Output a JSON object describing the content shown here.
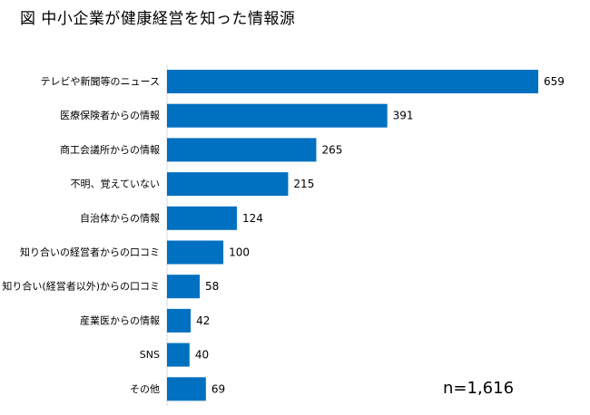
{
  "chart_data": {
    "type": "bar",
    "orientation": "horizontal",
    "title": "図 中小企業が健康経営を知った情報源",
    "categories": [
      "テレビや新聞等のニュース",
      "医療保険者からの情報",
      "商工会議所からの情報",
      "不明、覚えていない",
      "自治体からの情報",
      "知り合いの経営者からの口コミ",
      "知り合い(経営者以外)からの口コミ",
      "産業医からの情報",
      "SNS",
      "その他"
    ],
    "values": [
      659,
      391,
      265,
      215,
      124,
      100,
      58,
      42,
      40,
      69
    ],
    "value_labels": [
      "659",
      "391",
      "265",
      "215",
      "124",
      "100",
      "58",
      "42",
      "40",
      "69"
    ],
    "xlim": [
      0,
      659
    ],
    "bar_color": "#0070c0",
    "grid": false,
    "legend": "none",
    "annotation": "n=1,616"
  }
}
